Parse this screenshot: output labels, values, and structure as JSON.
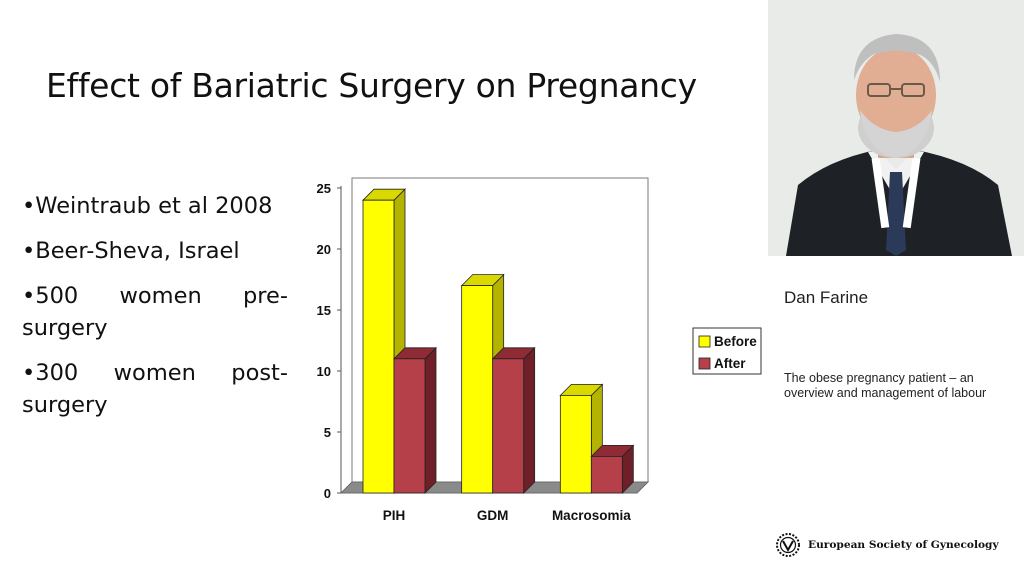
{
  "slide": {
    "title": "Effect of Bariatric Surgery on Pregnancy",
    "bullets": [
      "•Weintraub et al 2008",
      "•Beer-Sheva, Israel",
      "•500 women pre-surgery",
      "•300 women post-surgery"
    ]
  },
  "chart_data": {
    "type": "bar",
    "categories": [
      "PIH",
      "GDM",
      "Macrosomia"
    ],
    "series": [
      {
        "name": "Before",
        "values": [
          24,
          17,
          8
        ],
        "color": "#ffff00",
        "side_color": "#b3b300",
        "top_color": "#d9d900"
      },
      {
        "name": "After",
        "values": [
          11,
          11,
          3
        ],
        "color": "#b5404a",
        "side_color": "#6e1f27",
        "top_color": "#8e2b34"
      }
    ],
    "ylim": [
      0,
      25
    ],
    "yticks": [
      "0",
      "5",
      "10",
      "15",
      "20",
      "25"
    ],
    "grid": false,
    "legend": "right",
    "three_d": true
  },
  "sidebar": {
    "presenter": "Dan Farine",
    "talk_title": "The obese pregnancy patient – an overview and management of labour",
    "org": "European Society of Gynecology"
  }
}
